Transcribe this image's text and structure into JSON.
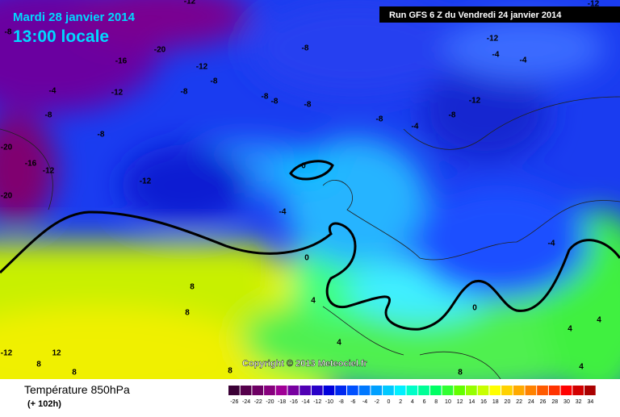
{
  "map": {
    "date": "Mardi 28 janvier 2014",
    "time": "13:00 locale",
    "run": "Run GFS 6 Z du Vendredi 24 janvier 2014",
    "copyright": "Copyright © 2013 Meteociel.fr",
    "contour_labels": [
      -12,
      -12,
      -8,
      -16,
      -20,
      -12,
      -8,
      -8,
      -12,
      -4,
      -4,
      -4,
      -12,
      -8,
      -8,
      -8,
      -8,
      -12,
      -8,
      -8,
      -4,
      -8,
      -8,
      -20,
      -16,
      -12,
      -12,
      -20,
      0,
      -4,
      0,
      -4,
      8,
      4,
      8,
      0,
      4,
      4,
      4,
      12,
      8,
      8,
      8,
      4,
      8,
      -12
    ]
  },
  "legend": {
    "title": "Température 850hPa",
    "lead": "(+ 102h)",
    "scale": [
      -26,
      -24,
      -22,
      -20,
      -18,
      -16,
      -14,
      -12,
      -10,
      -8,
      -6,
      -4,
      -2,
      0,
      2,
      4,
      6,
      8,
      10,
      12,
      14,
      16,
      18,
      20,
      22,
      24,
      26,
      28,
      30,
      32,
      34
    ],
    "colors": [
      "#3a0035",
      "#55004b",
      "#6e0064",
      "#87007d",
      "#a00096",
      "#7800a0",
      "#5000b4",
      "#2800c8",
      "#0000dc",
      "#0028f0",
      "#0050ff",
      "#0078ff",
      "#00a0ff",
      "#00c8ff",
      "#00f0ff",
      "#00ffc8",
      "#00ff96",
      "#00ff64",
      "#32ff32",
      "#64ff00",
      "#96ff00",
      "#c8ff00",
      "#ffff00",
      "#ffd200",
      "#ffaa00",
      "#ff8200",
      "#ff5a00",
      "#ff3200",
      "#ff0000",
      "#d20000",
      "#aa0000"
    ]
  }
}
